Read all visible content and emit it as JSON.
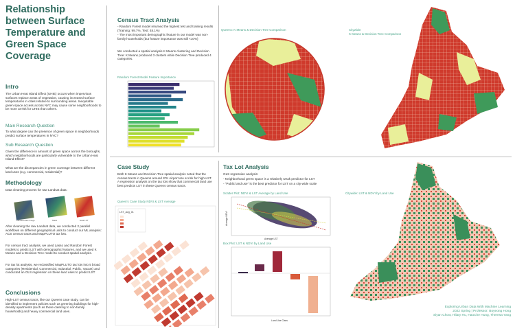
{
  "poster": {
    "title": "Relationship between Surface Temperature and Green Space Coverage"
  },
  "intro": {
    "heading": "Intro",
    "text": "The Urban Heat Island Effect (UHIE) occurs when impervious surfaces replace areas of vegetation, causing increased surface temperatures in cities relative to surrounding areas. Inequitable green space access across NYC may cause some neighborhoods to be more at-risk for UHIE than others."
  },
  "main_question": {
    "heading": "Main Research Question",
    "text": "To what degree can the presence of green space in neighborhoods predict surface temperatures in NYC?"
  },
  "sub_question": {
    "heading": "Sub Research Question",
    "text1": "Given the difference in amount of green space across the boroughs, which neighborhoods are particularly vulnerable to the Urban Heat Island Effect?",
    "text2": "What are the discrepancies in green coverage between different land uses (e.g. commercial, residential)?"
  },
  "methodology": {
    "heading": "Methodology",
    "intro": "Data cleaning process for raw Landsat data:",
    "img_labels": [
      "Landsat Raw Image",
      "Mask",
      "Heat LST"
    ],
    "p1": "After cleaning the raw Landsat data, we conducted 2 parallel workflows on different geographical units to conduct our ML analysis: ACS census tracts and MapPLUTO tax lots.",
    "p2": "For census tract analysis, we used Lasso and Random Forest models to predict LST with demographic features, and we used K Means and a Decision Tree model to conduct spatial analysis.",
    "p3": "For tax lot analysis, we reclassified MapPLUTO tax lots into 5 broad categories (Residential, Commercial, Industrial, Public, Vacant) and conducted an OLS regression on these land uses to predict LST"
  },
  "conclusions": {
    "heading": "Conclusions",
    "text": "High-LST census tracts, like our Queens case study, can be identified to implement policies such as greening buildings for high-density apartments (such as those catering to non-family households) and heavy commercial land uses."
  },
  "census": {
    "heading": "Census Tract Analysis",
    "b1": "- Random Forest model returned the highest test and training results (Training: 99.7%, Test: 48.1%)",
    "b2": "- The most important demographic feature in our model was non-family households (but feature importance was still <10%)",
    "p": "We conducted a spatial analysis K Means clustering and Decision Tree: K Means produced 3 clusters while Decision Tree produced 4 categories.",
    "queens_map_caption": "Queens: K Means & Decision Tree Comparison",
    "citywide_caption": "Citywide:\nK Means & Decision Tree Comparison"
  },
  "rf_chart": {
    "caption": "Random Forest Model Feature Importance"
  },
  "case_study": {
    "heading": "Case Study",
    "text": "Both K Means and Decision Tree spatial analysis noted that the census tracts in Queens around JFK Airport are at risk for high-LST. A regression analysis on the tax lots show that commercial land use best predicts LST in these Queens census tracts.",
    "map_caption": "Queen's Case Study NDVI & LST Average",
    "legend_title": "LST_Avg_01"
  },
  "tax_lot": {
    "heading": "Tax Lot Analysis",
    "b0": "OLS regression analysis:",
    "b1": "- Neighborhood green space is a relatively weak predictor for LST",
    "b2": "- \"Public land use\" is the best predictor for LST on a city-wide scale",
    "scatter_caption": "Scatter Plot: NDVI & LST Average by Land Use",
    "scatter_xlabel": "Average LST",
    "scatter_ylabel": "Average NDVI",
    "box_caption": "Box Plot: LST & NDVI by Land Use",
    "box_xlabel": "Land Use Class",
    "citywide_caption": "Citywide: LST & NDVI by Land Use"
  },
  "footer": {
    "line1": "Exploring Urban Data With Machine Learning",
    "line2": "2022 Spring | Professor: Boyeong Hong",
    "line3": "Siyan Chow, Hilary Hu, HaoChe Hung, Theresa Yang"
  },
  "colors": {
    "accent": "#2e6b5e",
    "caption": "#4aa58a",
    "red": "#c9302c",
    "green": "#3a8f5a"
  }
}
